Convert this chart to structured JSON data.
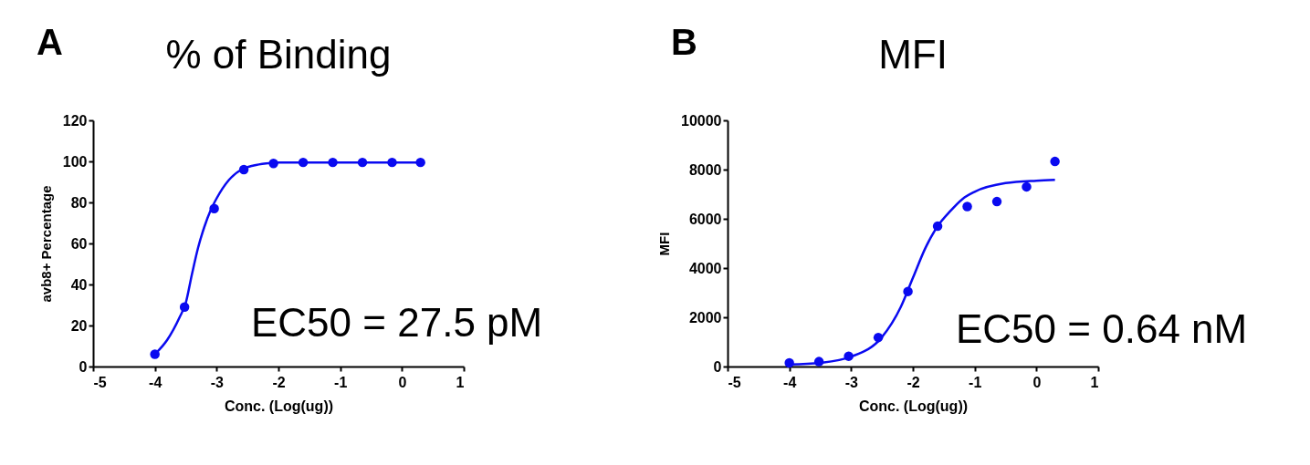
{
  "chart_data": [
    {
      "type": "scatter",
      "title": "% of Binding",
      "xlabel": "Conc. (Log(ug))",
      "ylabel": "avb8+ Percentage",
      "xlim": [
        -5,
        1
      ],
      "xticks": [
        -5,
        -4,
        -3,
        -2,
        -1,
        0,
        1
      ],
      "ylim": [
        0,
        120
      ],
      "yticks": [
        0,
        20,
        40,
        60,
        80,
        100,
        120
      ],
      "grid": false,
      "annotations": [
        "A",
        "EC50 = 27.5 pM"
      ],
      "series": [
        {
          "marker": "circle",
          "color": "#0a0af0",
          "x": [
            -4,
            -3.52,
            -3.04,
            -2.56,
            -2.08,
            -1.6,
            -1.12,
            -0.64,
            -0.16,
            0.3
          ],
          "values": [
            6,
            29,
            77,
            96,
            99,
            99.5,
            99.5,
            99.5,
            99.5,
            99.5
          ]
        },
        {
          "type": "line",
          "color": "#0a0af0",
          "x": [
            -4,
            -3.8,
            -3.6,
            -3.5,
            -3.4,
            -3.3,
            -3.2,
            -3.1,
            -3.0,
            -2.8,
            -2.6,
            -2.4,
            -2.2,
            -2.0,
            -1.5,
            0.3
          ],
          "values": [
            6,
            13,
            24,
            31,
            45,
            58,
            68,
            76,
            82,
            91,
            96,
            98,
            99,
            99.5,
            99.5,
            99.5
          ]
        }
      ]
    },
    {
      "type": "scatter",
      "title": "MFI",
      "xlabel": "Conc. (Log(ug))",
      "ylabel": "MFI",
      "xlim": [
        -5,
        1
      ],
      "xticks": [
        -5,
        -4,
        -3,
        -2,
        -1,
        0,
        1
      ],
      "ylim": [
        0,
        10000
      ],
      "yticks": [
        0,
        2000,
        4000,
        6000,
        8000,
        10000
      ],
      "grid": false,
      "annotations": [
        "B",
        "EC50 = 0.64 nM"
      ],
      "series": [
        {
          "marker": "circle",
          "color": "#0a0af0",
          "x": [
            -4,
            -3.52,
            -3.04,
            -2.56,
            -2.08,
            -1.6,
            -1.12,
            -0.64,
            -0.16,
            0.3
          ],
          "values": [
            150,
            200,
            420,
            1180,
            3050,
            5700,
            6500,
            6700,
            7300,
            8330
          ]
        },
        {
          "type": "line",
          "color": "#0a0af0",
          "x": [
            -4,
            -3.5,
            -3.0,
            -2.5,
            -2.2,
            -2.0,
            -1.8,
            -1.6,
            -1.4,
            -1.2,
            -1.0,
            -0.5,
            0,
            0.3
          ],
          "values": [
            80,
            150,
            400,
            1200,
            2400,
            3600,
            4800,
            5700,
            6300,
            6800,
            7100,
            7450,
            7550,
            7580
          ]
        }
      ]
    }
  ]
}
